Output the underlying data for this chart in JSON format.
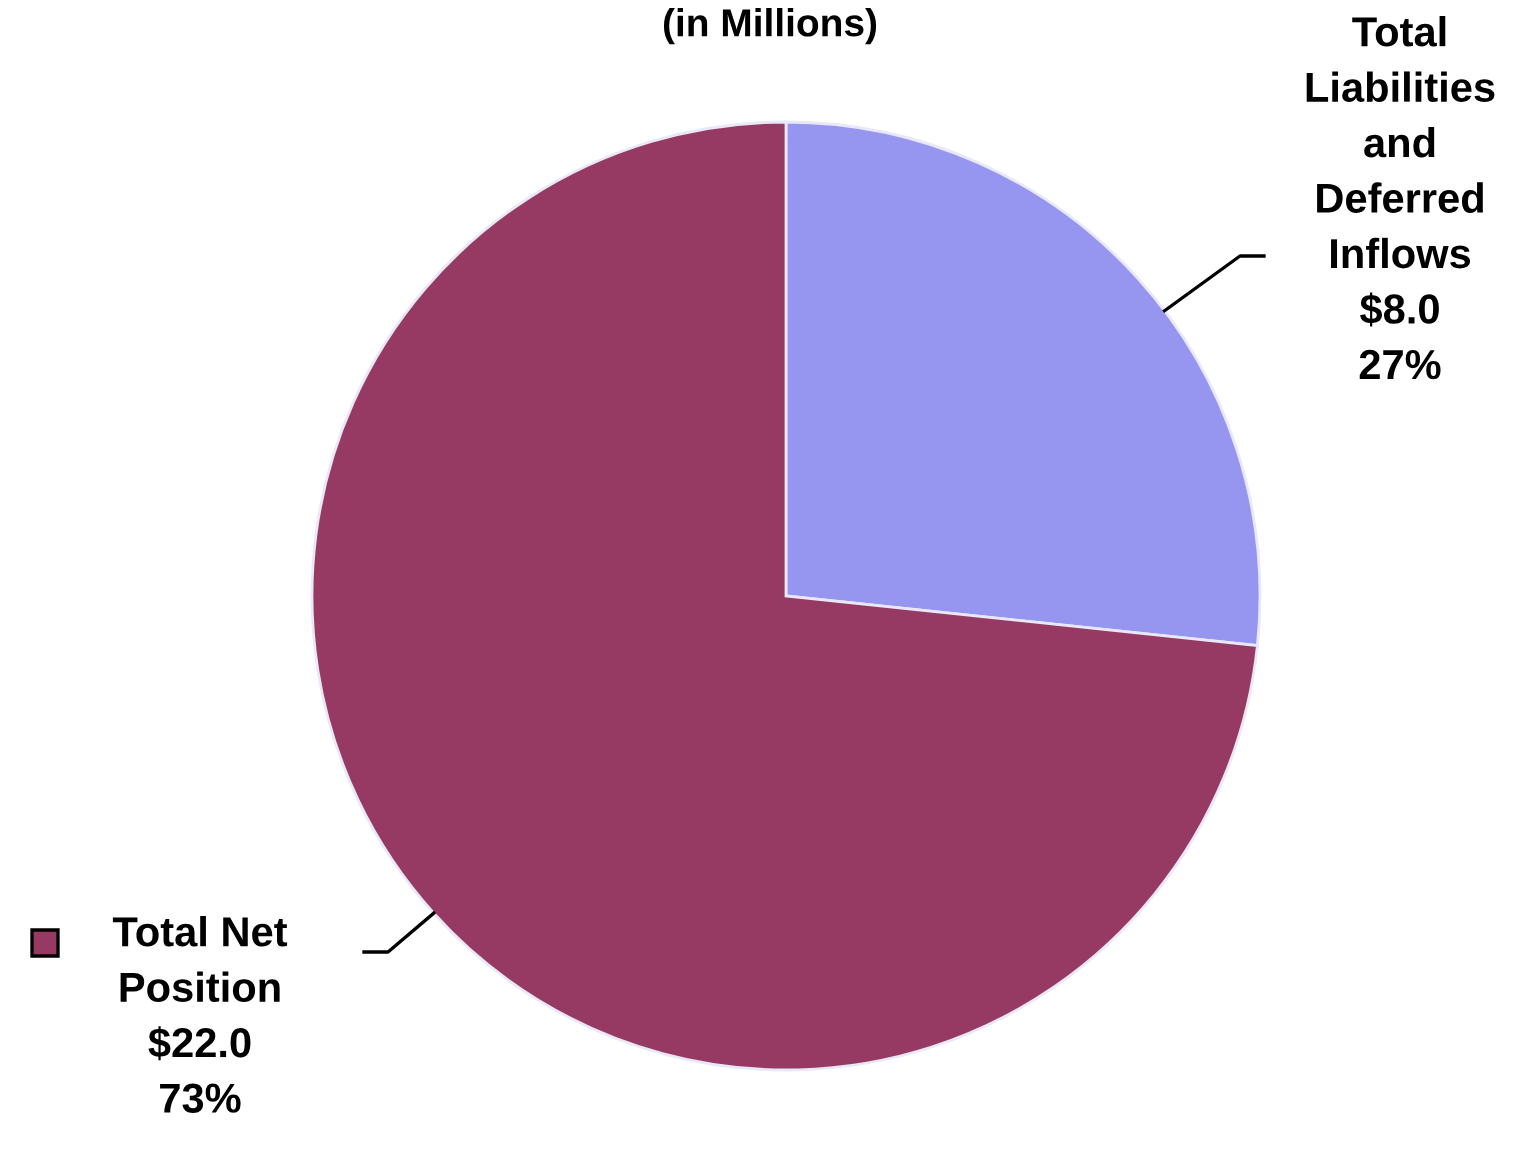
{
  "chart_data": {
    "type": "pie",
    "title": "(in Millions)",
    "categories": [
      "Total Liabilities and Deferred Inflows",
      "Total Net Position"
    ],
    "values": [
      8.0,
      22.0
    ],
    "colors": [
      "#9696f0",
      "#963a64"
    ],
    "value_labels": [
      "$8.0\n27%",
      "$22.0\n73%"
    ],
    "legend": "bottom left"
  }
}
